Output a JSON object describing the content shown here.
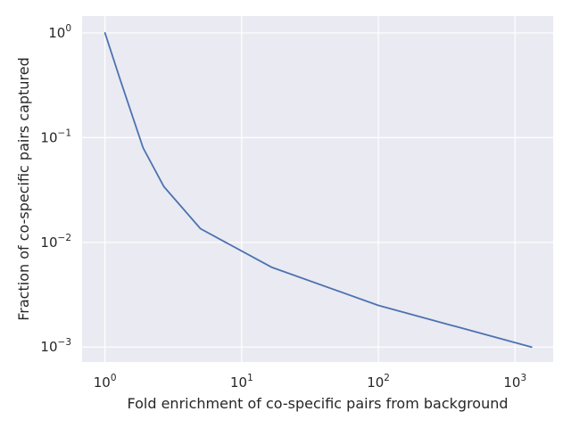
{
  "chart_data": {
    "type": "line",
    "title": "",
    "xlabel": "Fold enrichment of co-specific pairs from background",
    "ylabel": "Fraction of co-specific pairs captured",
    "xscale": "log",
    "yscale": "log",
    "xlim": [
      0.68,
      1900
    ],
    "ylim": [
      0.00072,
      1.45
    ],
    "grid": true,
    "legend": "none",
    "x_ticks": [
      {
        "value": 1,
        "base": "10",
        "exp": "0"
      },
      {
        "value": 10,
        "base": "10",
        "exp": "1"
      },
      {
        "value": 100,
        "base": "10",
        "exp": "2"
      },
      {
        "value": 1000,
        "base": "10",
        "exp": "3"
      }
    ],
    "y_ticks": [
      {
        "value": 1,
        "base": "10",
        "exp": "0"
      },
      {
        "value": 0.1,
        "base": "10",
        "exp": "−1"
      },
      {
        "value": 0.01,
        "base": "10",
        "exp": "−2"
      },
      {
        "value": 0.001,
        "base": "10",
        "exp": "−3"
      }
    ],
    "series": [
      {
        "color": "#4c72b0",
        "x": [
          1.0,
          1.3,
          1.9,
          2.7,
          5.0,
          16.5,
          100,
          1320
        ],
        "y": [
          1.0,
          0.35,
          0.08,
          0.034,
          0.0135,
          0.0058,
          0.0025,
          0.001
        ]
      }
    ]
  },
  "colors": {
    "plot_background": "#eaeaf2",
    "grid": "#ffffff",
    "line": "#4c72b0"
  }
}
